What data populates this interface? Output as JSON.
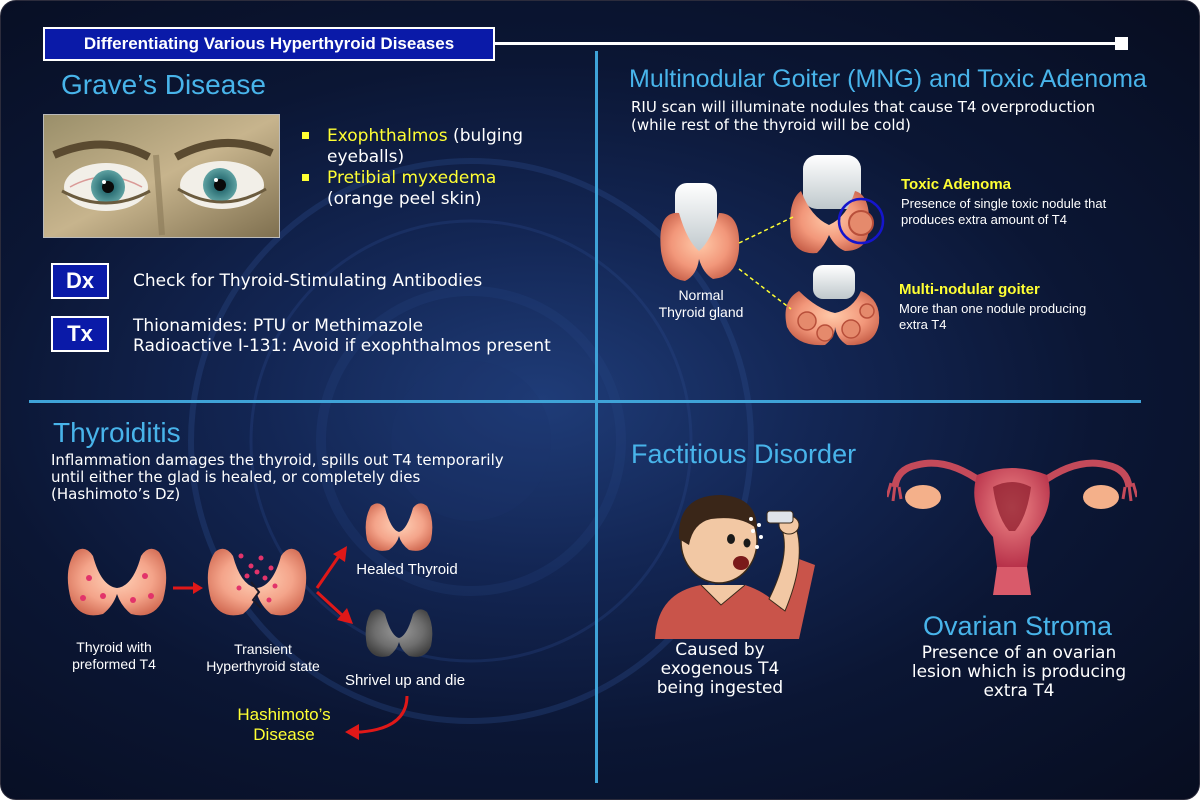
{
  "title": "Differentiating Various Hyperthyroid Diseases",
  "graves": {
    "title": "Grave’s Disease",
    "bullets": [
      {
        "highlight": "Exophthalmos",
        "rest1": " (bulging",
        "rest2": "eyeballs)"
      },
      {
        "highlight": "Pretibial myxedema",
        "rest1": "",
        "rest2": "(orange peel skin)"
      }
    ],
    "dx_tag": "Dx",
    "dx_text": "Check for Thyroid-Stimulating Antibodies",
    "tx_tag": "Tx",
    "tx_line1": "Thionamides: PTU or Methimazole",
    "tx_line2": "Radioactive I-131: Avoid if exophthalmos present"
  },
  "mng": {
    "title": "Multinodular Goiter (MNG) and Toxic Adenoma",
    "desc1": "RIU scan will illuminate nodules that cause T4 overproduction",
    "desc2": "(while rest of the thyroid will be cold)",
    "normal_line1": "Normal",
    "normal_line2": "Thyroid gland",
    "toxic_title": "Toxic Adenoma",
    "toxic_line1": "Presence of single toxic nodule that",
    "toxic_line2": "produces extra amount of T4",
    "multi_title": "Multi-nodular goiter",
    "multi_line1": "More than one nodule producing",
    "multi_line2": "extra T4"
  },
  "thyroiditis": {
    "title": "Thyroiditis",
    "desc1": "Inflammation damages the thyroid, spills out T4 temporarily",
    "desc2": "until either the glad is healed, or completely dies",
    "desc3": "(Hashimoto’s Dz)",
    "preformed_line1": "Thyroid with",
    "preformed_line2": "preformed T4",
    "transient_line1": "Transient",
    "transient_line2": "Hyperthyroid state",
    "healed": "Healed Thyroid",
    "shrivel": "Shrivel up and die",
    "hashimoto_line1": "Hashimoto’s",
    "hashimoto_line2": "Disease"
  },
  "factitious": {
    "title": "Factitious Disorder",
    "line1": "Caused by",
    "line2": "exogenous T4",
    "line3": "being ingested"
  },
  "ovarian": {
    "title": "Ovarian Stroma",
    "line1": "Presence of an ovarian",
    "line2": "lesion which is producing",
    "line3": "extra T4"
  },
  "colors": {
    "accent_blue": "#48b4ea",
    "highlight_yellow": "#ffff33",
    "tag_blue": "#0a1aa8",
    "divider": "#3fa3d8"
  }
}
